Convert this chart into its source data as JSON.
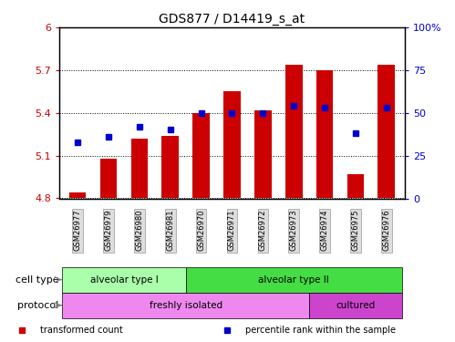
{
  "title": "GDS877 / D14419_s_at",
  "samples": [
    "GSM26977",
    "GSM26979",
    "GSM26980",
    "GSM26981",
    "GSM26970",
    "GSM26971",
    "GSM26972",
    "GSM26973",
    "GSM26974",
    "GSM26975",
    "GSM26976"
  ],
  "transformed_counts": [
    4.84,
    5.08,
    5.22,
    5.24,
    5.4,
    5.55,
    5.42,
    5.74,
    5.7,
    4.97,
    5.74
  ],
  "percentile_ranks": [
    33,
    36,
    42,
    40,
    50,
    50,
    50,
    54,
    53,
    38,
    53
  ],
  "ylim_left": [
    4.8,
    6.0
  ],
  "ylim_right": [
    0,
    100
  ],
  "yticks_left": [
    4.8,
    5.1,
    5.4,
    5.7,
    6.0
  ],
  "yticks_right": [
    0,
    25,
    50,
    75,
    100
  ],
  "ytick_labels_left": [
    "4.8",
    "5.1",
    "5.4",
    "5.7",
    "6"
  ],
  "ytick_labels_right": [
    "0",
    "25",
    "50",
    "75",
    "100%"
  ],
  "bar_color": "#cc0000",
  "dot_color": "#0000cc",
  "cell_type_groups": [
    {
      "label": "alveolar type I",
      "start": 0,
      "end": 3,
      "color": "#aaffaa"
    },
    {
      "label": "alveolar type II",
      "start": 4,
      "end": 10,
      "color": "#44dd44"
    }
  ],
  "protocol_groups": [
    {
      "label": "freshly isolated",
      "start": 0,
      "end": 7,
      "color": "#ee88ee"
    },
    {
      "label": "cultured",
      "start": 8,
      "end": 10,
      "color": "#cc44cc"
    }
  ],
  "cell_type_label": "cell type",
  "protocol_label": "protocol",
  "legend_items": [
    {
      "label": "transformed count",
      "color": "#cc0000"
    },
    {
      "label": "percentile rank within the sample",
      "color": "#0000cc"
    }
  ],
  "background_color": "#ffffff",
  "tick_label_color_left": "#cc0000",
  "tick_label_color_right": "#0000cc"
}
